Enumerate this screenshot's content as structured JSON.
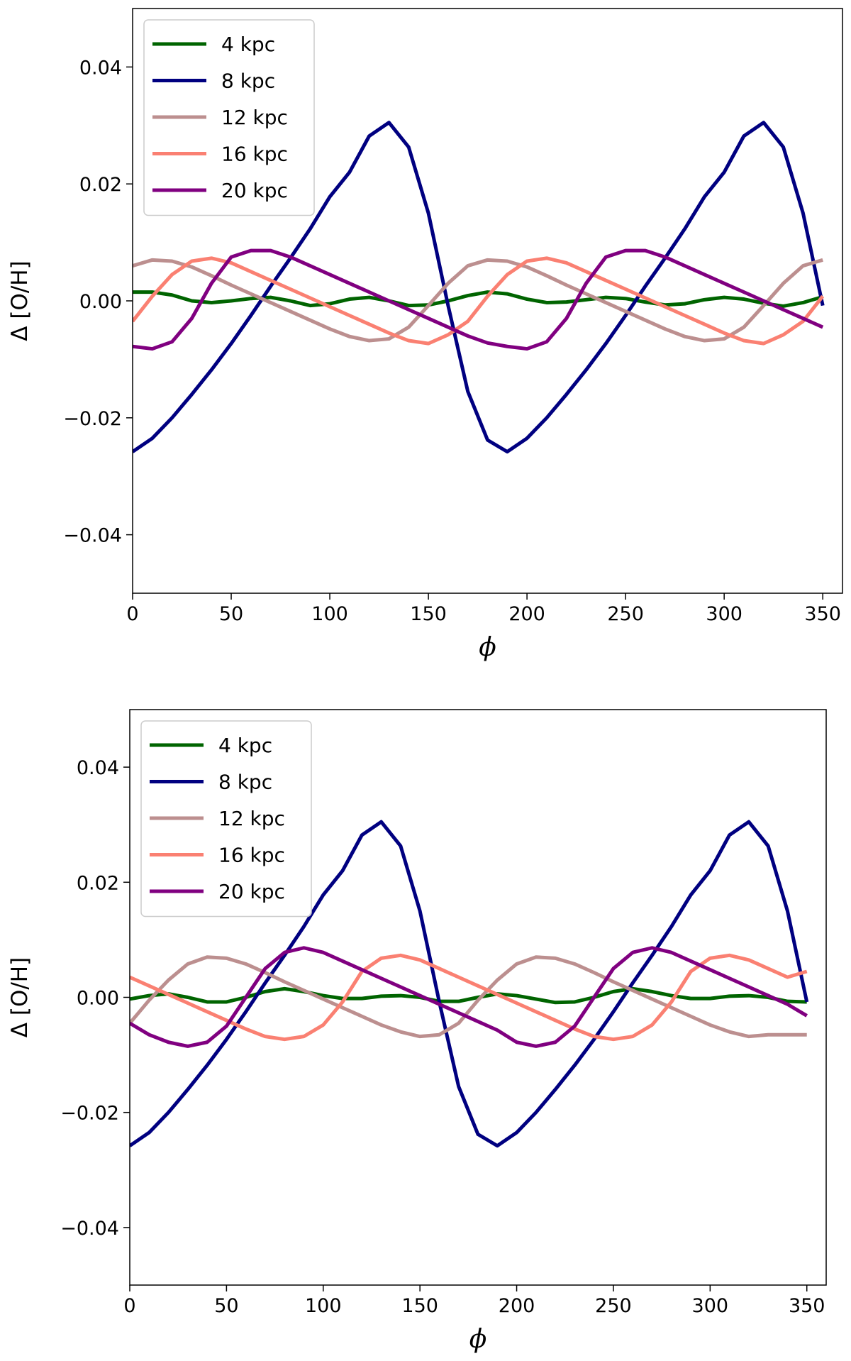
{
  "chart_data": [
    {
      "type": "line",
      "title": "",
      "xlabel": "ϕ",
      "ylabel": "Δ [O/H]",
      "xlim": [
        0,
        360
      ],
      "ylim": [
        -0.05,
        0.05
      ],
      "xticks": [
        0,
        50,
        100,
        150,
        200,
        250,
        300,
        350
      ],
      "xtick_labels": [
        "0",
        "50",
        "100",
        "150",
        "200",
        "250",
        "300",
        "350"
      ],
      "yticks": [
        -0.04,
        -0.02,
        0.0,
        0.02,
        0.04
      ],
      "ytick_labels": [
        "−0.04",
        "−0.02",
        "0.00",
        "0.02",
        "0.04"
      ],
      "legend_position": "top-left",
      "grid": false,
      "x": [
        0,
        10,
        20,
        30,
        40,
        50,
        60,
        70,
        80,
        90,
        100,
        110,
        120,
        130,
        140,
        150,
        160,
        170,
        180,
        190,
        200,
        210,
        220,
        230,
        240,
        250,
        260,
        270,
        280,
        290,
        300,
        310,
        320,
        330,
        340,
        350
      ],
      "series": [
        {
          "name": "4 kpc",
          "color": "#006400",
          "values": [
            0.0015,
            0.0015,
            0.001,
            0.0,
            -0.0003,
            0.0,
            0.0004,
            0.0006,
            0.0,
            -0.0008,
            -0.0005,
            0.0003,
            0.0006,
            0.0,
            -0.0008,
            -0.0007,
            0.0,
            0.0009,
            0.0015,
            0.0012,
            0.0003,
            -0.0003,
            -0.0002,
            0.0002,
            0.0006,
            0.0004,
            -0.0002,
            -0.0007,
            -0.0005,
            0.0002,
            0.0006,
            0.0003,
            -0.0004,
            -0.0009,
            -0.0003,
            0.0007
          ]
        },
        {
          "name": "8 kpc",
          "color": "#000080",
          "values": [
            -0.0258,
            -0.0235,
            -0.02,
            -0.016,
            -0.0118,
            -0.0073,
            -0.0025,
            0.0025,
            0.0073,
            0.0123,
            0.0178,
            0.022,
            0.0282,
            0.0305,
            0.0263,
            0.015,
            -0.0008,
            -0.0155,
            -0.0238,
            -0.0258,
            -0.0235,
            -0.02,
            -0.016,
            -0.0118,
            -0.0073,
            -0.0025,
            0.0025,
            0.0073,
            0.0123,
            0.0178,
            0.022,
            0.0282,
            0.0305,
            0.0263,
            0.015,
            -0.0008
          ]
        },
        {
          "name": "12 kpc",
          "color": "#BC8F8F",
          "values": [
            0.006,
            0.007,
            0.0068,
            0.0058,
            0.0043,
            0.0027,
            0.0012,
            -0.0003,
            -0.0018,
            -0.0033,
            -0.0048,
            -0.0061,
            -0.0068,
            -0.0065,
            -0.0045,
            -0.0008,
            0.003,
            0.006,
            0.007,
            0.0068,
            0.0058,
            0.0043,
            0.0027,
            0.0012,
            -0.0003,
            -0.0018,
            -0.0033,
            -0.0048,
            -0.0061,
            -0.0068,
            -0.0065,
            -0.0045,
            -0.0008,
            0.003,
            0.006,
            0.007
          ]
        },
        {
          "name": "16 kpc",
          "color": "#FA8072",
          "values": [
            -0.0035,
            0.0008,
            0.0045,
            0.0068,
            0.0073,
            0.0065,
            0.005,
            0.0035,
            0.002,
            0.0005,
            -0.001,
            -0.0025,
            -0.004,
            -0.0055,
            -0.0068,
            -0.0073,
            -0.0058,
            -0.0035,
            0.0008,
            0.0045,
            0.0068,
            0.0073,
            0.0065,
            0.005,
            0.0035,
            0.002,
            0.0005,
            -0.001,
            -0.0025,
            -0.004,
            -0.0055,
            -0.0068,
            -0.0073,
            -0.0058,
            -0.0035,
            0.0008
          ]
        },
        {
          "name": "20 kpc",
          "color": "#800080",
          "values": [
            -0.0078,
            -0.0082,
            -0.007,
            -0.003,
            0.003,
            0.0075,
            0.0086,
            0.0086,
            0.0075,
            0.006,
            0.0045,
            0.003,
            0.0015,
            0.0,
            -0.0015,
            -0.003,
            -0.0045,
            -0.006,
            -0.0072,
            -0.0078,
            -0.0082,
            -0.007,
            -0.003,
            0.003,
            0.0075,
            0.0086,
            0.0086,
            0.0075,
            0.006,
            0.0045,
            0.003,
            0.0015,
            0.0,
            -0.0015,
            -0.003,
            -0.0045
          ]
        }
      ]
    },
    {
      "type": "line",
      "title": "",
      "xlabel": "ϕ",
      "ylabel": "Δ [O/H]",
      "xlim": [
        0,
        360
      ],
      "ylim": [
        -0.05,
        0.05
      ],
      "xticks": [
        0,
        50,
        100,
        150,
        200,
        250,
        300,
        350
      ],
      "xtick_labels": [
        "0",
        "50",
        "100",
        "150",
        "200",
        "250",
        "300",
        "350"
      ],
      "yticks": [
        -0.04,
        -0.02,
        0.0,
        0.02,
        0.04
      ],
      "ytick_labels": [
        "−0.04",
        "−0.02",
        "0.00",
        "0.02",
        "0.04"
      ],
      "legend_position": "top-left",
      "grid": false,
      "x": [
        0,
        10,
        20,
        30,
        40,
        50,
        60,
        70,
        80,
        90,
        100,
        110,
        120,
        130,
        140,
        150,
        160,
        170,
        180,
        190,
        200,
        210,
        220,
        230,
        240,
        250,
        260,
        270,
        280,
        290,
        300,
        310,
        320,
        330,
        340,
        350
      ],
      "series": [
        {
          "name": "4 kpc",
          "color": "#006400",
          "values": [
            -0.0003,
            0.0003,
            0.0006,
            0.0,
            -0.0008,
            -0.0008,
            0.0,
            0.001,
            0.0015,
            0.001,
            0.0003,
            -0.0002,
            -0.0002,
            0.0002,
            0.0003,
            0.0,
            -0.0007,
            -0.0007,
            0.0,
            0.0006,
            0.0003,
            -0.0003,
            -0.0009,
            -0.0008,
            0.0,
            0.001,
            0.0015,
            0.001,
            0.0003,
            -0.0002,
            -0.0002,
            0.0002,
            0.0003,
            0.0,
            -0.0007,
            -0.0008
          ]
        },
        {
          "name": "8 kpc",
          "color": "#000080",
          "values": [
            -0.0258,
            -0.0235,
            -0.02,
            -0.016,
            -0.0118,
            -0.0073,
            -0.0025,
            0.0025,
            0.0073,
            0.0123,
            0.0178,
            0.022,
            0.0282,
            0.0305,
            0.0263,
            0.015,
            -0.0008,
            -0.0155,
            -0.0238,
            -0.0258,
            -0.0235,
            -0.02,
            -0.016,
            -0.0118,
            -0.0073,
            -0.0025,
            0.0025,
            0.0073,
            0.0123,
            0.0178,
            0.022,
            0.0282,
            0.0305,
            0.0263,
            0.015,
            -0.0008
          ]
        },
        {
          "name": "12 kpc",
          "color": "#BC8F8F",
          "values": [
            -0.0045,
            -0.0005,
            0.003,
            0.0058,
            0.007,
            0.0068,
            0.0058,
            0.0043,
            0.0027,
            0.0012,
            -0.0003,
            -0.0018,
            -0.0033,
            -0.0048,
            -0.006,
            -0.0068,
            -0.0065,
            -0.0045,
            -0.0005,
            0.003,
            0.0058,
            0.007,
            0.0068,
            0.0058,
            0.0043,
            0.0027,
            0.0012,
            -0.0003,
            -0.0018,
            -0.0033,
            -0.0048,
            -0.006,
            -0.0068,
            -0.0065,
            -0.0065,
            -0.0065
          ]
        },
        {
          "name": "16 kpc",
          "color": "#FA8072",
          "values": [
            0.0035,
            0.002,
            0.0005,
            -0.001,
            -0.0025,
            -0.004,
            -0.0055,
            -0.0068,
            -0.0073,
            -0.0068,
            -0.0048,
            -0.0008,
            0.0045,
            0.0068,
            0.0073,
            0.0065,
            0.005,
            0.0035,
            0.002,
            0.0005,
            -0.001,
            -0.0025,
            -0.004,
            -0.0055,
            -0.0068,
            -0.0073,
            -0.0068,
            -0.0048,
            -0.0008,
            0.0045,
            0.0068,
            0.0073,
            0.0065,
            0.005,
            0.0035,
            0.0045
          ]
        },
        {
          "name": "20 kpc",
          "color": "#800080",
          "values": [
            -0.0045,
            -0.0065,
            -0.0078,
            -0.0085,
            -0.0078,
            -0.005,
            0.0,
            0.005,
            0.0078,
            0.0086,
            0.0078,
            0.0063,
            0.0048,
            0.0033,
            0.0018,
            0.0003,
            -0.0012,
            -0.0027,
            -0.0042,
            -0.0057,
            -0.0078,
            -0.0085,
            -0.0078,
            -0.005,
            0.0,
            0.005,
            0.0078,
            0.0086,
            0.0078,
            0.0063,
            0.0048,
            0.0033,
            0.0018,
            0.0003,
            -0.0012,
            -0.0032
          ]
        }
      ]
    }
  ]
}
